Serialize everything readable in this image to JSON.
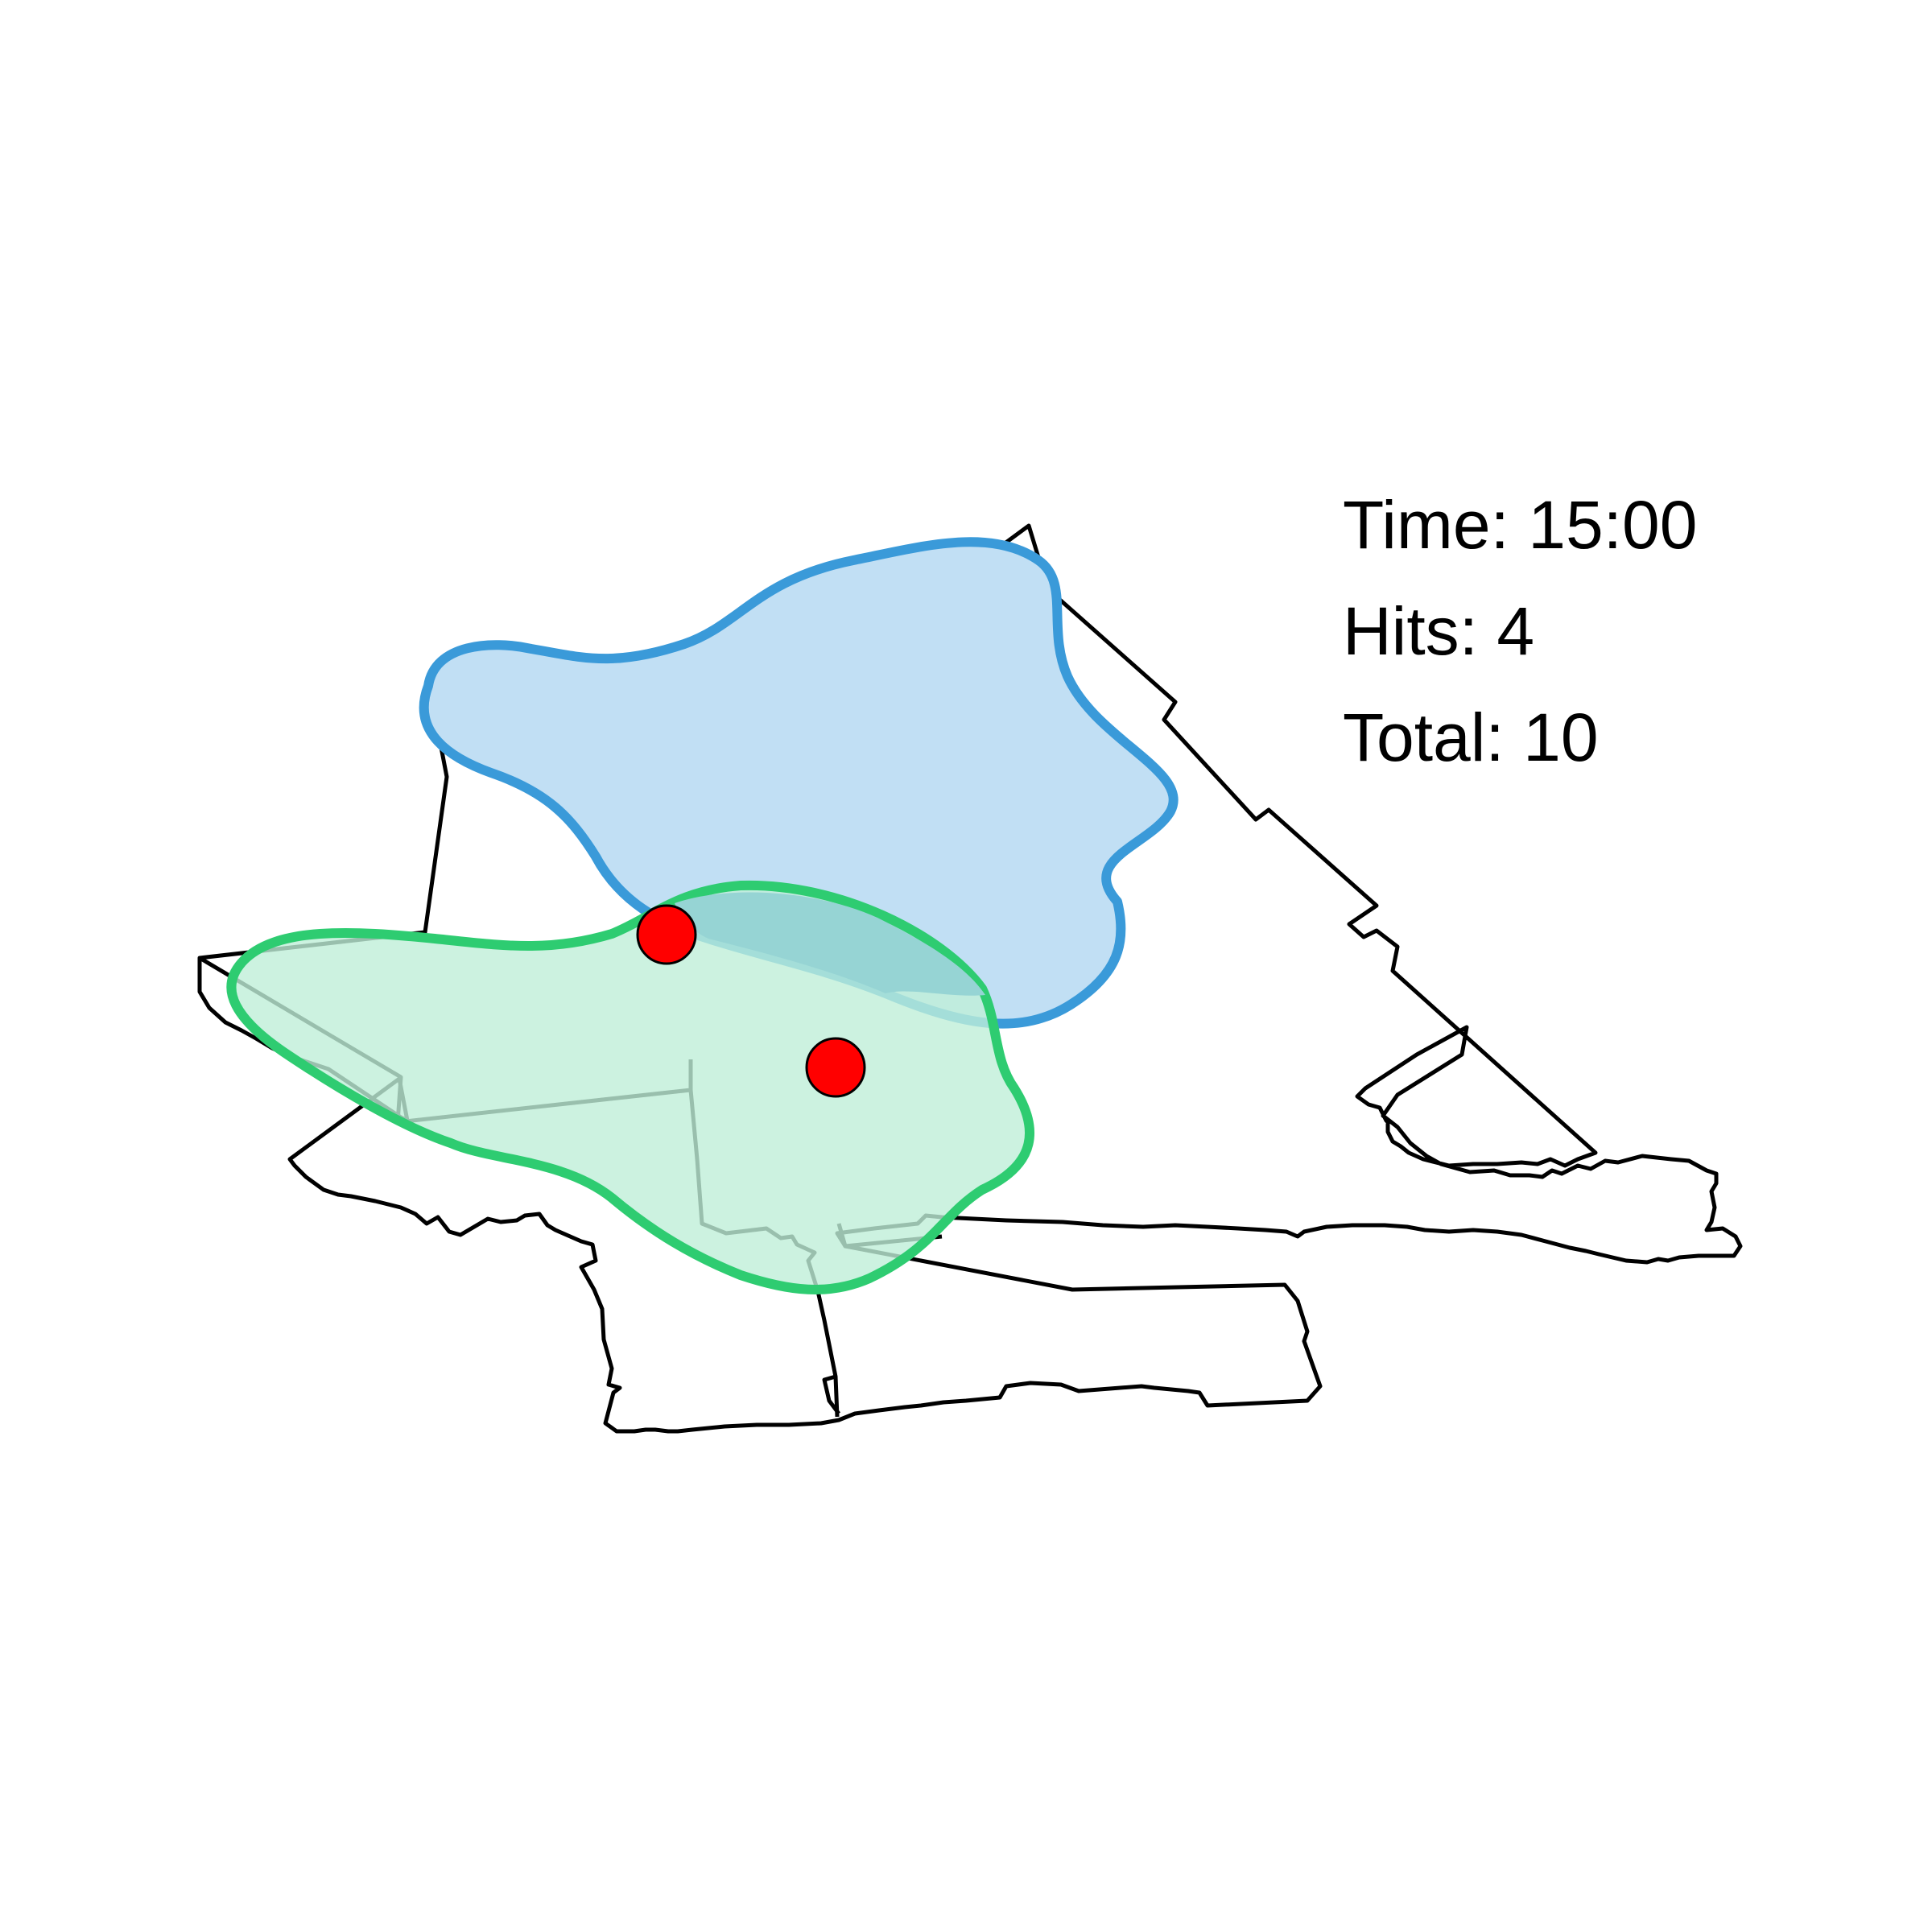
{
  "stats": {
    "time": "Time: 15:00",
    "hits": "Hits: 4",
    "total": "Total: 10"
  },
  "colors": {
    "boundary": "#000000",
    "zone_blue_stroke": "#3a9ad9",
    "zone_blue_fill": "#c1dff4",
    "zone_green_stroke": "#2ecc71",
    "zone_green_fill": "#bfefd8",
    "point_fill": "#ff0000"
  }
}
